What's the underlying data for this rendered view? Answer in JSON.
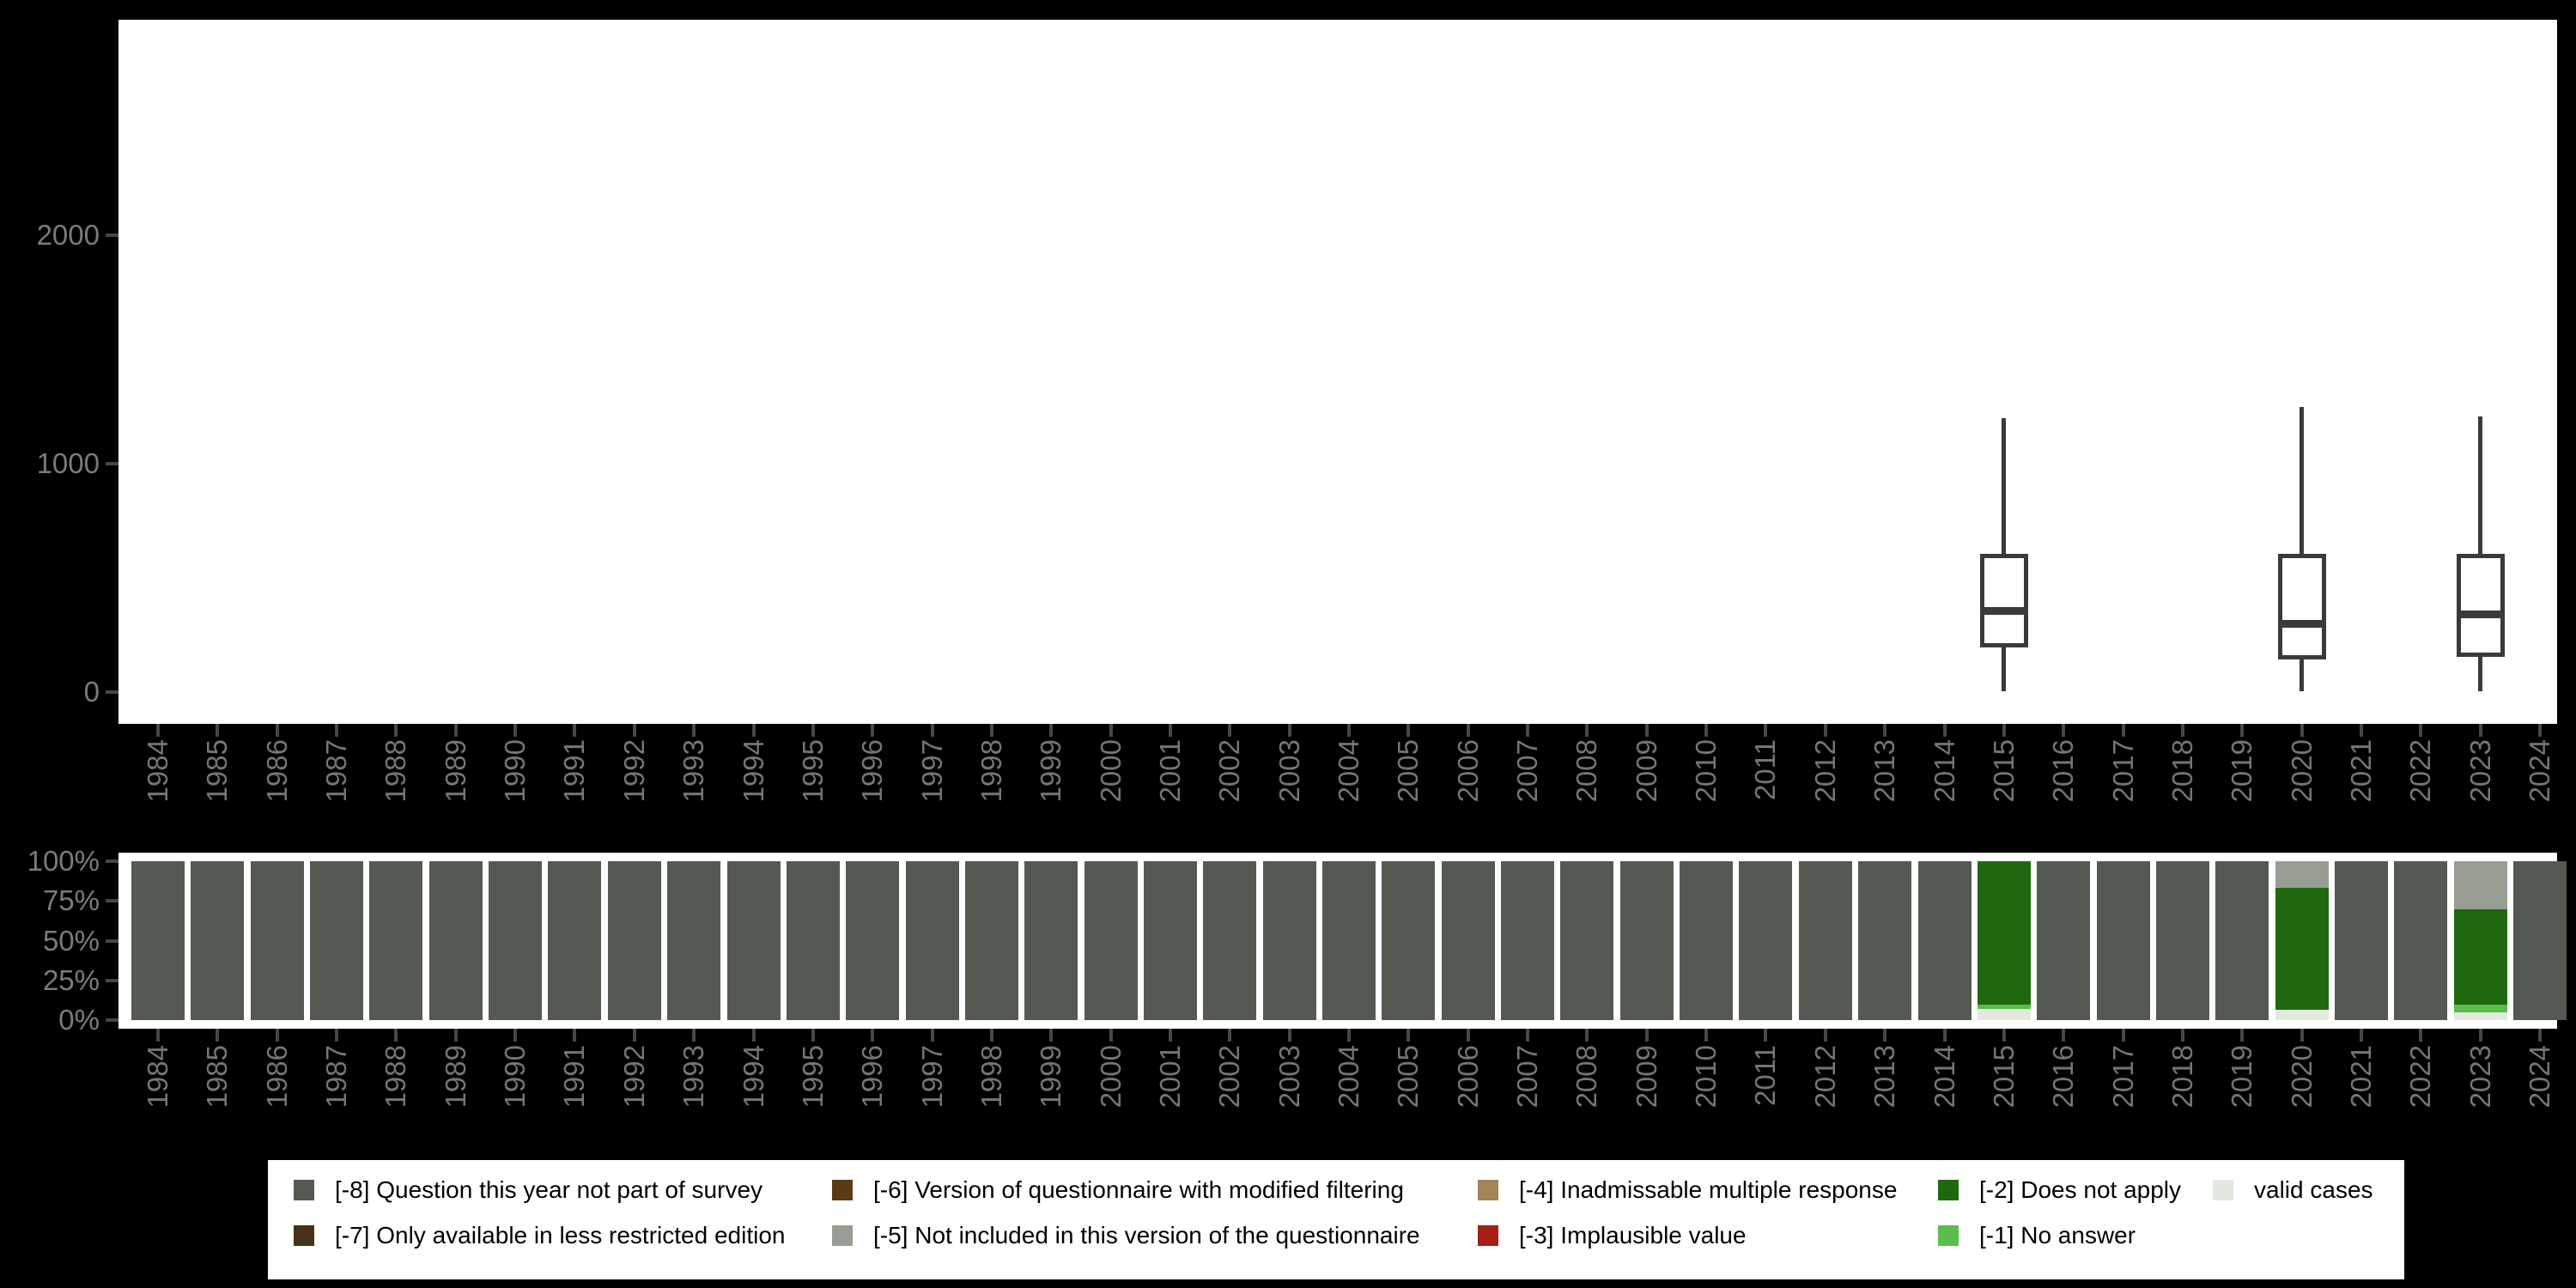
{
  "figure": {
    "background": "#000000",
    "panel_background": "#ffffff",
    "title": ""
  },
  "colors": {
    "q_not_part": "#545a52",
    "less_restricted": "#48301a",
    "modified_filtering": "#5b3a18",
    "not_included": "#989d94",
    "inadmissable": "#a28457",
    "implausible": "#a51d15",
    "does_not_apply": "#20680f",
    "no_answer": "#5bbd4c",
    "valid": "#e3e8e0",
    "box_stroke": "#3a3a3a",
    "axis_tick_mark": "#474747",
    "axis_tick_label": "#757575"
  },
  "years": [
    "1984",
    "1985",
    "1986",
    "1987",
    "1988",
    "1989",
    "1990",
    "1991",
    "1992",
    "1993",
    "1994",
    "1995",
    "1996",
    "1997",
    "1998",
    "1999",
    "2000",
    "2001",
    "2002",
    "2003",
    "2004",
    "2005",
    "2006",
    "2007",
    "2008",
    "2009",
    "2010",
    "2011",
    "2012",
    "2013",
    "2014",
    "2015",
    "2016",
    "2017",
    "2018",
    "2019",
    "2020",
    "2021",
    "2022",
    "2023",
    "2024"
  ],
  "chart_data": [
    {
      "type": "boxplot",
      "title": "",
      "xlabel": "",
      "ylabel": "",
      "x_categories_note": "years 1984-2024, see top-level years array",
      "y_ticks": [
        {
          "value": 0,
          "label": "0"
        },
        {
          "value": 1000,
          "label": "1000"
        },
        {
          "value": 2000,
          "label": "2000"
        }
      ],
      "ylim": [
        -140,
        2950
      ],
      "grid": "off",
      "boxes": [
        {
          "year": "2015",
          "min": 5,
          "q1": 195,
          "median": 355,
          "q3": 605,
          "max": 1200
        },
        {
          "year": "2020",
          "min": 5,
          "q1": 143,
          "median": 297,
          "q3": 605,
          "max": 1250
        },
        {
          "year": "2023",
          "min": 5,
          "q1": 154,
          "median": 342,
          "q3": 605,
          "max": 1207
        }
      ]
    },
    {
      "type": "bar",
      "stacked": true,
      "units": "percent",
      "title": "",
      "xlabel": "",
      "ylabel": "",
      "y_ticks": [
        {
          "value": 0,
          "label": "0%"
        },
        {
          "value": 25,
          "label": "25%"
        },
        {
          "value": 50,
          "label": "50%"
        },
        {
          "value": 75,
          "label": "75%"
        },
        {
          "value": 100,
          "label": "100%"
        }
      ],
      "default_stack_bottom_to_top": [
        [
          "q_not_part",
          100
        ]
      ],
      "stacks_bottom_to_top": {
        "2015": [
          [
            "valid",
            7
          ],
          [
            "no_answer",
            2.5
          ],
          [
            "does_not_apply",
            90.5
          ]
        ],
        "2020": [
          [
            "valid",
            6.5
          ],
          [
            "does_not_apply",
            76.5
          ],
          [
            "not_included",
            17
          ]
        ],
        "2023": [
          [
            "valid",
            5
          ],
          [
            "no_answer",
            4.5
          ],
          [
            "does_not_apply",
            60.5
          ],
          [
            "not_included",
            30
          ]
        ]
      }
    }
  ],
  "legend": {
    "rows": [
      [
        {
          "key": "q_not_part",
          "label": "[-8] Question this year not part of survey"
        },
        {
          "key": "modified_filtering",
          "label": "[-6] Version of questionnaire with modified filtering"
        },
        {
          "key": "inadmissable",
          "label": "[-4] Inadmissable multiple response"
        },
        {
          "key": "does_not_apply",
          "label": "[-2] Does not apply"
        },
        {
          "key": "valid",
          "label": "valid cases"
        }
      ],
      [
        {
          "key": "less_restricted",
          "label": "[-7] Only available in less restricted edition"
        },
        {
          "key": "not_included",
          "label": "[-5] Not included in this version of the questionnaire"
        },
        {
          "key": "implausible",
          "label": "[-3] Implausible value"
        },
        {
          "key": "no_answer",
          "label": "[-1] No answer"
        }
      ]
    ]
  }
}
